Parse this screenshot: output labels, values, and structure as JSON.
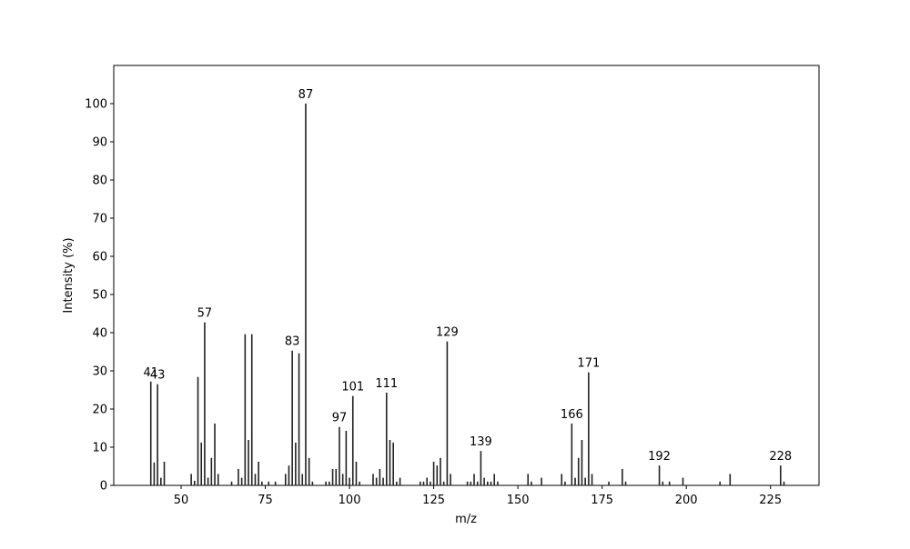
{
  "chart_data": {
    "type": "stem",
    "x_label": "m/z",
    "y_label": "Intensity (%)",
    "color": "#222222",
    "x": [
      41,
      42,
      43,
      44,
      45,
      53,
      54,
      55,
      56,
      57,
      58,
      59,
      60,
      61,
      65,
      67,
      68,
      69,
      70,
      71,
      72,
      73,
      74,
      76,
      78,
      81,
      82,
      83,
      84,
      85,
      86,
      87,
      88,
      89,
      93,
      94,
      95,
      96,
      97,
      98,
      99,
      100,
      101,
      102,
      103,
      107,
      108,
      109,
      110,
      111,
      112,
      113,
      114,
      115,
      121,
      122,
      123,
      124,
      125,
      126,
      127,
      128,
      129,
      130,
      135,
      136,
      137,
      138,
      139,
      140,
      141,
      142,
      143,
      144,
      153,
      154,
      157,
      163,
      164,
      166,
      167,
      168,
      169,
      170,
      171,
      172,
      177,
      181,
      182,
      192,
      193,
      195,
      199,
      210,
      213,
      228,
      229
    ],
    "values": [
      27.2,
      6,
      26.5,
      2,
      6.2,
      3,
      1.2,
      28.4,
      11.2,
      42.7,
      2,
      7.2,
      16.2,
      3,
      1,
      4.3,
      2,
      39.6,
      11.9,
      39.6,
      3,
      6.2,
      1,
      1,
      1,
      3,
      5.2,
      35.3,
      11.2,
      34.6,
      3,
      100,
      7.2,
      1,
      1,
      1,
      4.3,
      4.3,
      15.3,
      3,
      14.3,
      2,
      23.4,
      6.2,
      1,
      3,
      2,
      4.3,
      2,
      24.3,
      11.9,
      11.2,
      1,
      2,
      1,
      1,
      2,
      1,
      6.2,
      5.2,
      7.2,
      1,
      37.7,
      3,
      1,
      1,
      3,
      1,
      9,
      2,
      1,
      1,
      3,
      1,
      3,
      1,
      2,
      3,
      1,
      16.2,
      2,
      7.2,
      11.9,
      2,
      29.6,
      3,
      1,
      4.3,
      1,
      5.2,
      1,
      1,
      2,
      1,
      3,
      5.2,
      1
    ],
    "annotations": [
      41,
      43,
      57,
      83,
      87,
      97,
      101,
      111,
      129,
      139,
      166,
      171,
      192,
      228
    ],
    "xlim": [
      30,
      239.4
    ],
    "ylim": [
      0,
      110
    ],
    "xticks": [
      50,
      75,
      100,
      125,
      150,
      175,
      200,
      225
    ],
    "yticks": [
      0,
      10,
      20,
      30,
      40,
      50,
      60,
      70,
      80,
      90,
      100
    ]
  }
}
